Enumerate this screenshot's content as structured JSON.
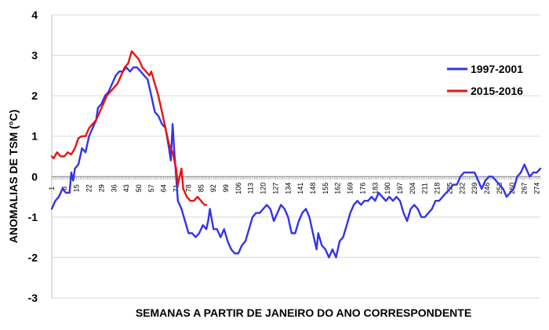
{
  "chart_data": {
    "type": "line",
    "title": "",
    "xlabel": "SEMANAS A PARTIR DE JANEIRO DO ANO CORRESPONDENTE",
    "ylabel": "ANOMALIAS DE TSM  (°C)",
    "ylim": [
      -3,
      4
    ],
    "xlim": [
      1,
      276
    ],
    "yticks": [
      "4",
      "3",
      "2",
      "1",
      "0",
      "-1",
      "-2",
      "-3"
    ],
    "xticks": [
      "1",
      "8",
      "15",
      "22",
      "29",
      "36",
      "43",
      "50",
      "57",
      "64",
      "71",
      "78",
      "85",
      "92",
      "99",
      "106",
      "113",
      "120",
      "127",
      "134",
      "141",
      "148",
      "155",
      "162",
      "169",
      "176",
      "183",
      "190",
      "197",
      "204",
      "211",
      "218",
      "225",
      "232",
      "239",
      "246",
      "253",
      "260",
      "267",
      "274"
    ],
    "grid": "horizontal",
    "legend_position": "right",
    "series": [
      {
        "name": "1997-2001",
        "color": "#3333ee",
        "points": [
          [
            1,
            -0.8
          ],
          [
            3,
            -0.6
          ],
          [
            5,
            -0.5
          ],
          [
            7,
            -0.3
          ],
          [
            9,
            -0.4
          ],
          [
            11,
            -0.4
          ],
          [
            12,
            0.1
          ],
          [
            13,
            -0.1
          ],
          [
            14,
            0.2
          ],
          [
            16,
            0.3
          ],
          [
            18,
            0.7
          ],
          [
            20,
            0.6
          ],
          [
            22,
            1.0
          ],
          [
            24,
            1.2
          ],
          [
            26,
            1.4
          ],
          [
            27,
            1.7
          ],
          [
            29,
            1.8
          ],
          [
            31,
            2.0
          ],
          [
            33,
            2.1
          ],
          [
            35,
            2.3
          ],
          [
            37,
            2.5
          ],
          [
            39,
            2.6
          ],
          [
            41,
            2.6
          ],
          [
            43,
            2.7
          ],
          [
            45,
            2.6
          ],
          [
            47,
            2.7
          ],
          [
            49,
            2.7
          ],
          [
            51,
            2.6
          ],
          [
            53,
            2.5
          ],
          [
            55,
            2.4
          ],
          [
            57,
            2.0
          ],
          [
            59,
            1.6
          ],
          [
            61,
            1.5
          ],
          [
            63,
            1.3
          ],
          [
            65,
            1.2
          ],
          [
            67,
            0.7
          ],
          [
            68,
            0.4
          ],
          [
            69,
            1.3
          ],
          [
            70,
            0.6
          ],
          [
            71,
            0.0
          ],
          [
            72,
            -0.6
          ],
          [
            74,
            -0.8
          ],
          [
            76,
            -1.1
          ],
          [
            78,
            -1.4
          ],
          [
            80,
            -1.4
          ],
          [
            82,
            -1.5
          ],
          [
            84,
            -1.4
          ],
          [
            86,
            -1.2
          ],
          [
            88,
            -1.3
          ],
          [
            89,
            -1.1
          ],
          [
            90,
            -0.8
          ],
          [
            92,
            -1.3
          ],
          [
            94,
            -1.3
          ],
          [
            96,
            -1.5
          ],
          [
            98,
            -1.3
          ],
          [
            100,
            -1.6
          ],
          [
            102,
            -1.8
          ],
          [
            104,
            -1.9
          ],
          [
            106,
            -1.9
          ],
          [
            108,
            -1.7
          ],
          [
            110,
            -1.6
          ],
          [
            112,
            -1.3
          ],
          [
            114,
            -1.0
          ],
          [
            116,
            -0.9
          ],
          [
            118,
            -0.9
          ],
          [
            120,
            -0.8
          ],
          [
            122,
            -0.7
          ],
          [
            124,
            -0.8
          ],
          [
            126,
            -1.1
          ],
          [
            128,
            -0.9
          ],
          [
            130,
            -0.7
          ],
          [
            132,
            -0.8
          ],
          [
            134,
            -1.0
          ],
          [
            136,
            -1.4
          ],
          [
            138,
            -1.4
          ],
          [
            140,
            -1.1
          ],
          [
            142,
            -0.9
          ],
          [
            144,
            -0.8
          ],
          [
            146,
            -1.0
          ],
          [
            148,
            -1.4
          ],
          [
            150,
            -1.8
          ],
          [
            151,
            -1.4
          ],
          [
            153,
            -1.7
          ],
          [
            155,
            -1.8
          ],
          [
            157,
            -2.0
          ],
          [
            159,
            -1.8
          ],
          [
            161,
            -2.0
          ],
          [
            163,
            -1.6
          ],
          [
            165,
            -1.5
          ],
          [
            167,
            -1.2
          ],
          [
            169,
            -0.9
          ],
          [
            171,
            -0.7
          ],
          [
            173,
            -0.6
          ],
          [
            175,
            -0.7
          ],
          [
            177,
            -0.6
          ],
          [
            179,
            -0.6
          ],
          [
            181,
            -0.5
          ],
          [
            183,
            -0.6
          ],
          [
            185,
            -0.4
          ],
          [
            187,
            -0.5
          ],
          [
            189,
            -0.6
          ],
          [
            191,
            -0.5
          ],
          [
            193,
            -0.6
          ],
          [
            195,
            -0.5
          ],
          [
            197,
            -0.6
          ],
          [
            199,
            -0.9
          ],
          [
            201,
            -1.1
          ],
          [
            203,
            -0.8
          ],
          [
            205,
            -0.7
          ],
          [
            207,
            -0.8
          ],
          [
            209,
            -1.0
          ],
          [
            211,
            -1.0
          ],
          [
            213,
            -0.9
          ],
          [
            215,
            -0.8
          ],
          [
            217,
            -0.6
          ],
          [
            219,
            -0.6
          ],
          [
            221,
            -0.5
          ],
          [
            223,
            -0.4
          ],
          [
            225,
            -0.3
          ],
          [
            227,
            -0.2
          ],
          [
            229,
            -0.2
          ],
          [
            231,
            0.0
          ],
          [
            233,
            0.1
          ],
          [
            235,
            0.1
          ],
          [
            237,
            0.1
          ],
          [
            239,
            0.1
          ],
          [
            241,
            -0.1
          ],
          [
            243,
            -0.3
          ],
          [
            245,
            -0.1
          ],
          [
            247,
            0.0
          ],
          [
            249,
            0.0
          ],
          [
            251,
            -0.1
          ],
          [
            253,
            -0.2
          ],
          [
            255,
            -0.3
          ],
          [
            257,
            -0.5
          ],
          [
            259,
            -0.4
          ],
          [
            261,
            -0.3
          ],
          [
            263,
            0.0
          ],
          [
            265,
            0.1
          ],
          [
            267,
            0.3
          ],
          [
            268,
            0.2
          ],
          [
            270,
            0.0
          ],
          [
            272,
            0.1
          ],
          [
            274,
            0.1
          ],
          [
            276,
            0.2
          ]
        ]
      },
      {
        "name": "2015-2016",
        "color": "#ee1111",
        "points": [
          [
            1,
            0.5
          ],
          [
            2,
            0.45
          ],
          [
            4,
            0.6
          ],
          [
            6,
            0.5
          ],
          [
            8,
            0.5
          ],
          [
            10,
            0.6
          ],
          [
            12,
            0.55
          ],
          [
            14,
            0.7
          ],
          [
            16,
            0.95
          ],
          [
            18,
            1.0
          ],
          [
            20,
            1.0
          ],
          [
            22,
            1.2
          ],
          [
            24,
            1.3
          ],
          [
            26,
            1.4
          ],
          [
            28,
            1.6
          ],
          [
            30,
            1.8
          ],
          [
            32,
            2.0
          ],
          [
            34,
            2.1
          ],
          [
            36,
            2.2
          ],
          [
            38,
            2.3
          ],
          [
            40,
            2.5
          ],
          [
            42,
            2.7
          ],
          [
            44,
            2.8
          ],
          [
            46,
            3.1
          ],
          [
            48,
            3.0
          ],
          [
            50,
            2.9
          ],
          [
            52,
            2.7
          ],
          [
            54,
            2.6
          ],
          [
            56,
            2.5
          ],
          [
            57,
            2.6
          ],
          [
            59,
            2.3
          ],
          [
            61,
            2.0
          ],
          [
            63,
            1.6
          ],
          [
            65,
            1.2
          ],
          [
            67,
            0.8
          ],
          [
            69,
            0.6
          ],
          [
            71,
            0.2
          ],
          [
            72,
            -0.2
          ],
          [
            73,
            0.0
          ],
          [
            74,
            0.2
          ],
          [
            75,
            -0.3
          ],
          [
            77,
            -0.5
          ],
          [
            79,
            -0.6
          ],
          [
            81,
            -0.6
          ],
          [
            83,
            -0.5
          ],
          [
            85,
            -0.6
          ],
          [
            87,
            -0.7
          ],
          [
            88,
            -0.7
          ]
        ]
      }
    ]
  }
}
